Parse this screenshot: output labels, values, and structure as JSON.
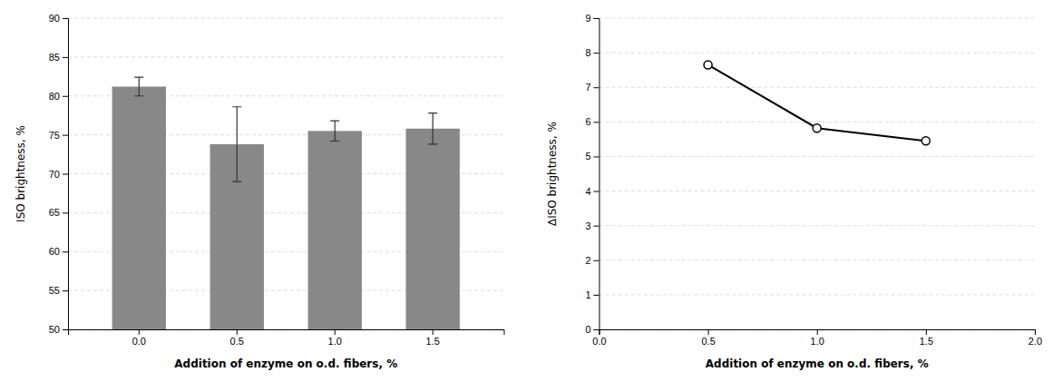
{
  "chart_data": [
    {
      "type": "bar",
      "categories": [
        "0.0",
        "0.5",
        "1.0",
        "1.5"
      ],
      "values": [
        81.2,
        73.8,
        75.5,
        75.8
      ],
      "errors": [
        1.2,
        4.8,
        1.3,
        2.0
      ],
      "color": "#888888",
      "xlabel": "Addition of enzyme on o.d. fibers, %",
      "ylabel": "ISO brightness, %",
      "ylim": [
        50,
        90
      ],
      "yticks": [
        50,
        55,
        60,
        65,
        70,
        75,
        80,
        85,
        90
      ],
      "grid": true
    },
    {
      "type": "line",
      "x": [
        0.5,
        1.0,
        1.5
      ],
      "values": [
        7.65,
        5.82,
        5.45
      ],
      "color": "#000000",
      "marker": "circle",
      "xlabel": "Addition of enzyme on o.d. fibers, %",
      "ylabel": "∆ISO brightness, %",
      "xlim": [
        0.0,
        2.0
      ],
      "xticks": [
        {
          "value": 0,
          "label": "0.0"
        },
        0.5,
        {
          "value": 1,
          "label": "1.0"
        },
        1.5,
        {
          "value": 2,
          "label": "2.0"
        }
      ],
      "ylim": [
        0,
        9
      ],
      "yticks": [
        0,
        1,
        2,
        3,
        4,
        5,
        6,
        7,
        8,
        9
      ],
      "grid": true
    }
  ]
}
